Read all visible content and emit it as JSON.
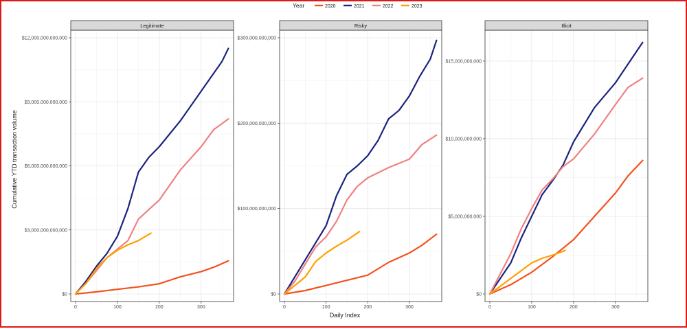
{
  "chart_data": {
    "type": "line",
    "legend": {
      "title": "Year",
      "placement": "top",
      "entries": [
        {
          "label": "2020",
          "color": "#f4511e"
        },
        {
          "label": "2021",
          "color": "#1a237e"
        },
        {
          "label": "2022",
          "color": "#f08080"
        },
        {
          "label": "2023",
          "color": "#ffa000"
        }
      ]
    },
    "xlabel": "Daily Index",
    "ylabel": "Cumulative YTD transaction volume",
    "grid": true,
    "panels": [
      {
        "title": "Legitimate",
        "xlim": [
          0,
          366
        ],
        "ylim": [
          0,
          12000000000000
        ],
        "xticks": [
          0,
          100,
          200,
          300
        ],
        "yticks": [
          {
            "value": 0,
            "label": "$0"
          },
          {
            "value": 3000000000000,
            "label": "$3,000,000,000,000"
          },
          {
            "value": 6000000000000,
            "label": "$6,000,000,000,000"
          },
          {
            "value": 9000000000000,
            "label": "$9,000,000,000,000"
          },
          {
            "value": 12000000000000,
            "label": "$12,000,000,000,000"
          }
        ],
        "series": [
          {
            "name": "2020",
            "x": [
              0,
              50,
              100,
              150,
              200,
              250,
              300,
              330,
              365
            ],
            "y": [
              0,
              100000000000,
              220000000000,
              330000000000,
              480000000000,
              800000000000,
              1050000000000,
              1250000000000,
              1550000000000
            ]
          },
          {
            "name": "2021",
            "x": [
              0,
              25,
              50,
              75,
              100,
              125,
              150,
              175,
              200,
              250,
              300,
              350,
              365
            ],
            "y": [
              0,
              600000000000,
              1300000000000,
              1900000000000,
              2700000000000,
              4000000000000,
              5700000000000,
              6400000000000,
              6900000000000,
              8100000000000,
              9500000000000,
              10900000000000,
              11500000000000
            ]
          },
          {
            "name": "2022",
            "x": [
              0,
              25,
              50,
              75,
              100,
              125,
              150,
              175,
              200,
              250,
              300,
              330,
              365
            ],
            "y": [
              0,
              500000000000,
              1100000000000,
              1700000000000,
              2100000000000,
              2500000000000,
              3500000000000,
              3950000000000,
              4400000000000,
              5800000000000,
              6900000000000,
              7700000000000,
              8200000000000
            ]
          },
          {
            "name": "2023",
            "x": [
              0,
              25,
              50,
              75,
              100,
              125,
              150,
              180
            ],
            "y": [
              0,
              500000000000,
              1200000000000,
              1700000000000,
              2050000000000,
              2300000000000,
              2500000000000,
              2850000000000
            ]
          }
        ]
      },
      {
        "title": "Risky",
        "xlim": [
          0,
          366
        ],
        "ylim": [
          0,
          300000000000
        ],
        "xticks": [
          0,
          100,
          200,
          300
        ],
        "yticks": [
          {
            "value": 0,
            "label": "$0"
          },
          {
            "value": 100000000000,
            "label": "$100,000,000,000"
          },
          {
            "value": 200000000000,
            "label": "$200,000,000,000"
          },
          {
            "value": 300000000000,
            "label": "$300,000,000,000"
          }
        ],
        "series": [
          {
            "name": "2020",
            "x": [
              0,
              50,
              100,
              150,
              200,
              250,
              300,
              330,
              365
            ],
            "y": [
              0,
              4000000000,
              10000000000,
              16000000000,
              22000000000,
              37000000000,
              48000000000,
              57000000000,
              70000000000
            ]
          },
          {
            "name": "2021",
            "x": [
              0,
              25,
              50,
              75,
              100,
              125,
              150,
              175,
              200,
              225,
              250,
              275,
              300,
              325,
              350,
              365
            ],
            "y": [
              0,
              20000000000,
              40000000000,
              60000000000,
              80000000000,
              115000000000,
              140000000000,
              150000000000,
              162000000000,
              180000000000,
              205000000000,
              215000000000,
              232000000000,
              255000000000,
              275000000000,
              297000000000
            ]
          },
          {
            "name": "2022",
            "x": [
              0,
              25,
              50,
              75,
              100,
              125,
              150,
              175,
              200,
              250,
              300,
              330,
              365
            ],
            "y": [
              0,
              15000000000,
              35000000000,
              55000000000,
              67000000000,
              85000000000,
              110000000000,
              126000000000,
              136000000000,
              148000000000,
              158000000000,
              175000000000,
              186000000000
            ]
          },
          {
            "name": "2023",
            "x": [
              0,
              25,
              50,
              75,
              100,
              125,
              150,
              180
            ],
            "y": [
              0,
              10000000000,
              20000000000,
              38000000000,
              48000000000,
              56000000000,
              63000000000,
              73000000000
            ]
          }
        ]
      },
      {
        "title": "Illicit",
        "xlim": [
          0,
          366
        ],
        "ylim": [
          0,
          16500000000
        ],
        "xticks": [
          0,
          100,
          200,
          300
        ],
        "yticks": [
          {
            "value": 0,
            "label": "$0"
          },
          {
            "value": 5000000000,
            "label": "$5,000,000,000"
          },
          {
            "value": 10000000000,
            "label": "$10,000,000,000"
          },
          {
            "value": 15000000000,
            "label": "$15,000,000,000"
          }
        ],
        "series": [
          {
            "name": "2020",
            "x": [
              0,
              50,
              100,
              150,
              200,
              250,
              300,
              330,
              365
            ],
            "y": [
              0,
              600000000,
              1400000000,
              2400000000,
              3500000000,
              5000000000,
              6500000000,
              7600000000,
              8600000000
            ]
          },
          {
            "name": "2021",
            "x": [
              0,
              25,
              50,
              75,
              100,
              125,
              150,
              175,
              200,
              250,
              300,
              330,
              365
            ],
            "y": [
              0,
              1000000000,
              2000000000,
              3600000000,
              5000000000,
              6400000000,
              7300000000,
              8300000000,
              9800000000,
              12000000000,
              13600000000,
              14800000000,
              16200000000
            ]
          },
          {
            "name": "2022",
            "x": [
              0,
              25,
              50,
              75,
              100,
              125,
              150,
              175,
              200,
              250,
              300,
              330,
              365
            ],
            "y": [
              0,
              1300000000,
              2600000000,
              4200000000,
              5500000000,
              6700000000,
              7400000000,
              8200000000,
              8700000000,
              10300000000,
              12200000000,
              13300000000,
              13900000000
            ]
          },
          {
            "name": "2023",
            "x": [
              0,
              25,
              50,
              75,
              100,
              125,
              150,
              180
            ],
            "y": [
              0,
              500000000,
              1000000000,
              1500000000,
              2000000000,
              2300000000,
              2500000000,
              2800000000
            ]
          }
        ]
      }
    ]
  }
}
